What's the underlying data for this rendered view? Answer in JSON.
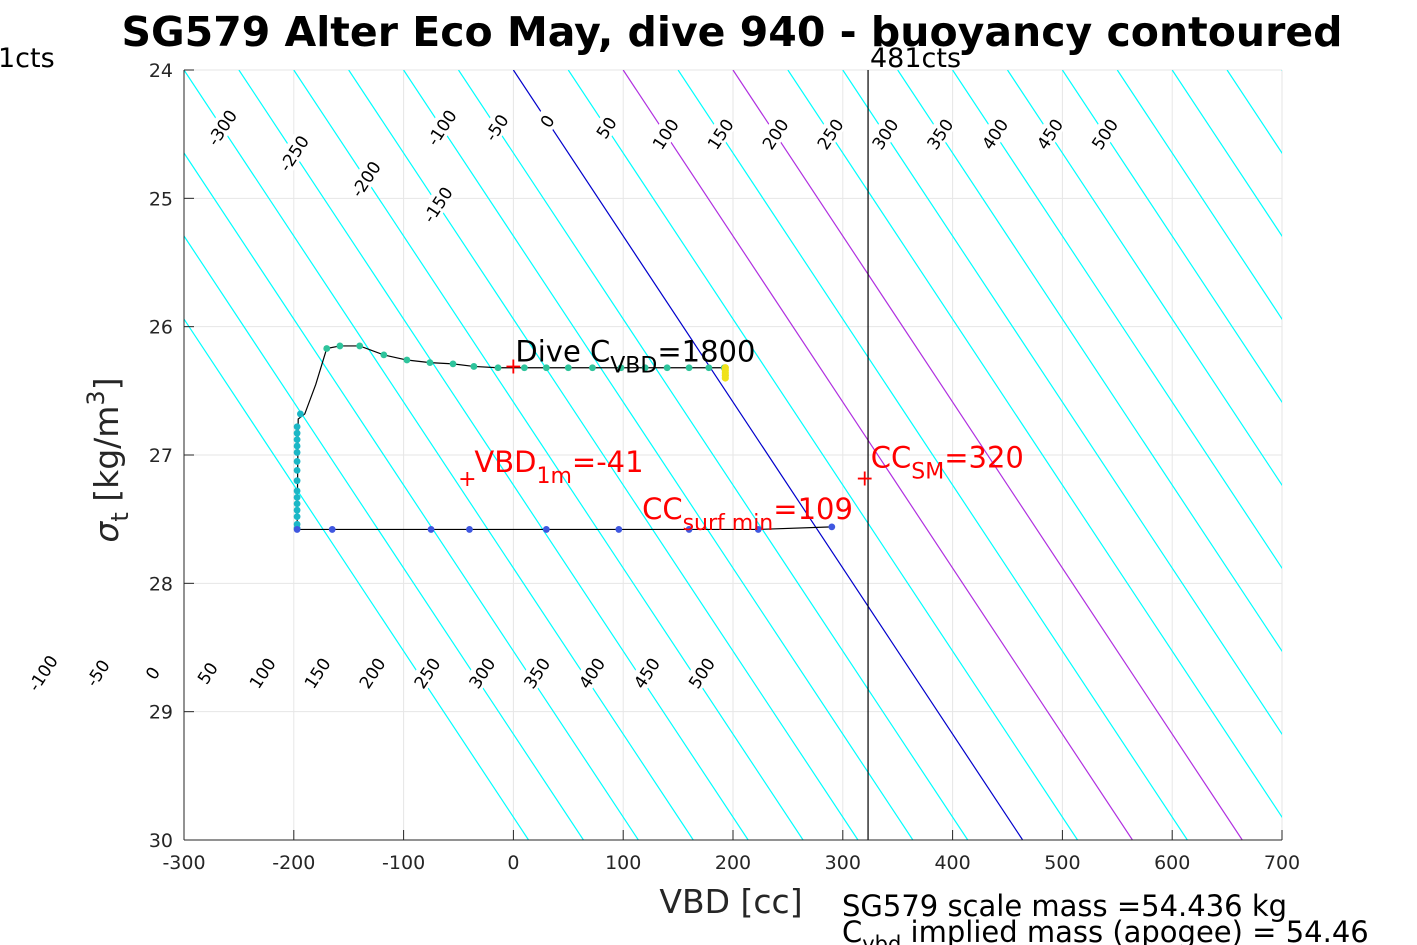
{
  "title": "SG579 Alter Eco May, dive 940 - buoyancy contoured",
  "corner_labels": {
    "left": "1cts",
    "right": "481cts"
  },
  "footer": {
    "line1": "SG579 scale mass =54.436 kg",
    "line2_pre": "C",
    "line2_sub": "vbd",
    "line2_post": " implied mass (apogee) = 54.46"
  },
  "colors": {
    "contour": "#00ffff",
    "zero_contour": "#0000cc",
    "magenta_contour": "#b030e0",
    "trace": "#000000",
    "annotation": "#ff0000",
    "grid": "#e6e6e6",
    "axis": "#262626",
    "label_text": "#262626"
  },
  "chart_data": {
    "type": "scatter",
    "xlabel": "VBD [cc]",
    "ylabel": {
      "sigma": "σ",
      "sub": "t",
      "text": " [kg/m",
      "sup": "3",
      "close": "]"
    },
    "xlim": [
      -300,
      700
    ],
    "ylim": [
      24,
      30
    ],
    "y_reversed": true,
    "grid": true,
    "xticks": [
      -300,
      -200,
      -100,
      0,
      100,
      200,
      300,
      400,
      500,
      600,
      700
    ],
    "xtick_labels": [
      "-300",
      "-200",
      "-100",
      "0",
      "100",
      "200",
      "300",
      "400",
      "500",
      "600",
      "700"
    ],
    "yticks": [
      24,
      25,
      26,
      27,
      28,
      29,
      30
    ],
    "ytick_labels": [
      "24",
      "25",
      "26",
      "27",
      "28",
      "29",
      "30"
    ],
    "contours": {
      "top_levels": [
        -300,
        -250,
        -200,
        -150,
        -100,
        -50,
        0,
        50,
        100,
        150,
        200,
        250,
        300,
        350,
        400,
        450,
        500
      ],
      "top_label_sigma": [
        24.45,
        24.65,
        24.85,
        25.05,
        24.45,
        24.45,
        24.4,
        24.45,
        24.5,
        24.5,
        24.5,
        24.5,
        24.5,
        24.5,
        24.5,
        24.5,
        24.5
      ],
      "top_origin_sigma": 24,
      "top_zero_vbd": 0,
      "bottom_levels": [
        -100,
        -50,
        0,
        50,
        100,
        150,
        200,
        250,
        300,
        350,
        400,
        450,
        500
      ],
      "bottom_label_sigma": 28.7,
      "bottom_origin_sigma": 30,
      "bottom_zero_vbd": -228,
      "vbd_per_sigma": 77.3,
      "magenta_levels": [
        100,
        200
      ]
    },
    "vertical_line_vbd": 323,
    "dive_trace": [
      [
        -170,
        26.17
      ],
      [
        -158,
        26.15
      ],
      [
        -140,
        26.15
      ],
      [
        -118,
        26.22
      ],
      [
        -97,
        26.26
      ],
      [
        -76,
        26.28
      ],
      [
        -55,
        26.29
      ],
      [
        -36,
        26.31
      ],
      [
        -14,
        26.32
      ],
      [
        10,
        26.32
      ],
      [
        30,
        26.32
      ],
      [
        50,
        26.32
      ],
      [
        72,
        26.32
      ],
      [
        98,
        26.32
      ],
      [
        120,
        26.32
      ],
      [
        140,
        26.32
      ],
      [
        160,
        26.32
      ],
      [
        178,
        26.32
      ],
      [
        193,
        26.32
      ],
      [
        193,
        26.38
      ],
      [
        192,
        26.32
      ]
    ],
    "dive_connector": [
      [
        -170,
        26.17
      ],
      [
        -180,
        26.45
      ],
      [
        -190,
        26.68
      ],
      [
        -196,
        26.72
      ],
      [
        -197,
        27.58
      ]
    ],
    "climb_trace": [
      [
        -197,
        27.58
      ],
      [
        -165,
        27.58
      ],
      [
        -75,
        27.58
      ],
      [
        -40,
        27.58
      ],
      [
        30,
        27.58
      ],
      [
        96,
        27.58
      ],
      [
        160,
        27.58
      ],
      [
        223,
        27.58
      ],
      [
        290,
        27.56
      ]
    ],
    "vertical_points": [
      [
        -194,
        26.68
      ],
      [
        -197,
        26.78
      ],
      [
        -197,
        26.83
      ],
      [
        -197,
        26.88
      ],
      [
        -197,
        26.93
      ],
      [
        -197,
        26.98
      ],
      [
        -197,
        27.05
      ],
      [
        -197,
        27.12
      ],
      [
        -197,
        27.2
      ],
      [
        -197,
        27.28
      ],
      [
        -197,
        27.33
      ],
      [
        -197,
        27.38
      ],
      [
        -197,
        27.43
      ],
      [
        -197,
        27.48
      ],
      [
        -197,
        27.54
      ],
      [
        -197,
        27.57
      ]
    ],
    "yellow_points": [
      [
        193,
        26.32
      ],
      [
        193,
        26.34
      ],
      [
        193,
        26.36
      ],
      [
        193,
        26.38
      ],
      [
        193,
        26.4
      ]
    ],
    "annotations": [
      {
        "id": "dive-cvbd",
        "color": "#000000",
        "pre": "Dive C",
        "sub": "VBD",
        "post": "=1800",
        "marker": "+",
        "vbd": 0,
        "sigma": 26.32
      },
      {
        "id": "vbd-1m",
        "color": "#ff0000",
        "pre": "VBD",
        "sub": "1m",
        "post": "=-41",
        "marker": "+",
        "vbd": -41,
        "sigma": 27.1
      },
      {
        "id": "cc-surf-min",
        "color": "#ff0000",
        "pre": "CC",
        "sub": "surf min",
        "post": "=109",
        "marker": "",
        "vbd": 109,
        "sigma": 27.22
      },
      {
        "id": "cc-sm",
        "color": "#ff0000",
        "pre": "CC",
        "sub": "SM",
        "post": "=320",
        "marker": "+",
        "vbd": 320,
        "sigma": 27.08
      }
    ]
  }
}
